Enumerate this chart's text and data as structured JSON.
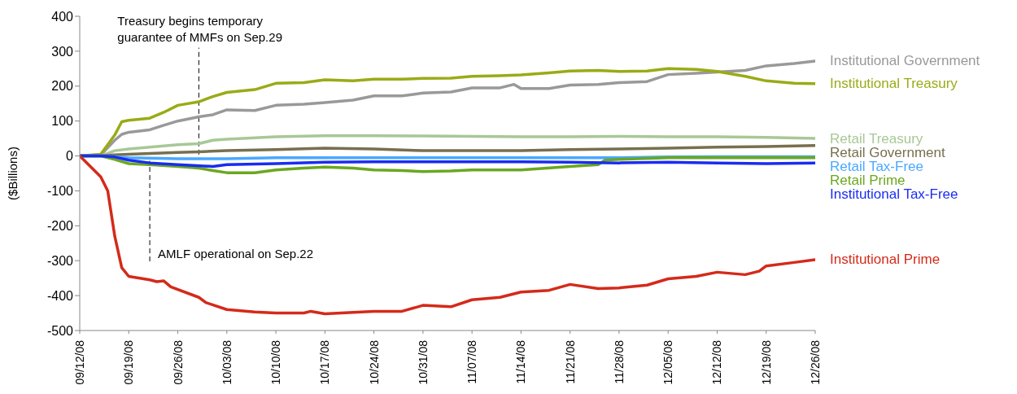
{
  "chart_data": {
    "type": "line",
    "ylabel": "($Billions)",
    "xlim": [
      "--09-12",
      "--12-26"
    ],
    "ylim": [
      -500,
      400
    ],
    "yticks": [
      -500,
      -400,
      -300,
      -200,
      -100,
      0,
      100,
      200,
      300,
      400
    ],
    "xticks": [
      {
        "value": "--09-12",
        "label": "09/12/08"
      },
      {
        "value": "--09-19",
        "label": "09/19/08"
      },
      {
        "value": "--09-26",
        "label": "09/26/08"
      },
      {
        "value": "--10-03",
        "label": "10/03/08"
      },
      {
        "value": "--10-10",
        "label": "10/10/08"
      },
      {
        "value": "--10-17",
        "label": "10/17/08"
      },
      {
        "value": "--10-24",
        "label": "10/24/08"
      },
      {
        "value": "--10-31",
        "label": "10/31/08"
      },
      {
        "value": "--11-07",
        "label": "11/07/08"
      },
      {
        "value": "--11-14",
        "label": "11/14/08"
      },
      {
        "value": "--11-21",
        "label": "11/21/08"
      },
      {
        "value": "--11-28",
        "label": "11/28/08"
      },
      {
        "value": "--12-05",
        "label": "12/05/08"
      },
      {
        "value": "--12-12",
        "label": "12/12/08"
      },
      {
        "value": "--12-19",
        "label": "12/19/08"
      },
      {
        "value": "--12-26",
        "label": "12/26/08"
      }
    ],
    "marker": "none",
    "line_style": "solid",
    "series": [
      {
        "name": "Institutional Government",
        "color": "#999999",
        "x": [
          "--09-12",
          "--09-15",
          "--09-17",
          "--09-18",
          "--09-19",
          "--09-22",
          "--09-24",
          "--09-26",
          "--09-29",
          "--10-01",
          "--10-03",
          "--10-07",
          "--10-10",
          "--10-14",
          "--10-17",
          "--10-21",
          "--10-24",
          "--10-28",
          "--10-31",
          "--11-04",
          "--11-07",
          "--11-11",
          "--11-13",
          "--11-14",
          "--11-18",
          "--11-21",
          "--11-25",
          "--11-28",
          "--12-02",
          "--12-05",
          "--12-09",
          "--12-12",
          "--12-16",
          "--12-19",
          "--12-23",
          "--12-26"
        ],
        "values": [
          0,
          3,
          45,
          62,
          68,
          75,
          88,
          100,
          112,
          118,
          132,
          130,
          145,
          148,
          153,
          160,
          172,
          172,
          180,
          183,
          195,
          195,
          205,
          193,
          193,
          203,
          205,
          210,
          213,
          233,
          237,
          240,
          245,
          258,
          265,
          272
        ]
      },
      {
        "name": "Institutional Treasury",
        "color": "#9aab16",
        "x": [
          "--09-12",
          "--09-15",
          "--09-17",
          "--09-18",
          "--09-19",
          "--09-22",
          "--09-24",
          "--09-26",
          "--09-29",
          "--10-01",
          "--10-03",
          "--10-07",
          "--10-10",
          "--10-14",
          "--10-17",
          "--10-21",
          "--10-24",
          "--10-28",
          "--10-31",
          "--11-04",
          "--11-07",
          "--11-11",
          "--11-14",
          "--11-18",
          "--11-21",
          "--11-25",
          "--11-28",
          "--12-02",
          "--12-05",
          "--12-09",
          "--12-12",
          "--12-16",
          "--12-19",
          "--12-23",
          "--12-26"
        ],
        "values": [
          0,
          5,
          60,
          98,
          102,
          108,
          125,
          145,
          155,
          170,
          182,
          190,
          208,
          210,
          218,
          215,
          220,
          220,
          222,
          223,
          228,
          230,
          232,
          238,
          243,
          245,
          242,
          243,
          250,
          248,
          242,
          228,
          215,
          208,
          207
        ]
      },
      {
        "name": "Retail Treasury",
        "color": "#a8c896",
        "x": [
          "--09-12",
          "--09-15",
          "--09-17",
          "--09-19",
          "--09-22",
          "--09-26",
          "--09-29",
          "--10-01",
          "--10-03",
          "--10-10",
          "--10-17",
          "--10-24",
          "--10-31",
          "--11-07",
          "--11-14",
          "--11-21",
          "--11-28",
          "--12-05",
          "--12-12",
          "--12-19",
          "--12-26"
        ],
        "values": [
          0,
          0,
          15,
          20,
          25,
          32,
          35,
          45,
          48,
          55,
          58,
          58,
          57,
          56,
          55,
          55,
          56,
          55,
          55,
          53,
          50
        ]
      },
      {
        "name": "Retail Government",
        "color": "#77704e",
        "x": [
          "--09-12",
          "--09-15",
          "--09-17",
          "--09-19",
          "--09-26",
          "--09-29",
          "--10-03",
          "--10-10",
          "--10-17",
          "--10-24",
          "--10-31",
          "--11-07",
          "--11-14",
          "--11-21",
          "--11-28",
          "--12-05",
          "--12-12",
          "--12-19",
          "--12-26"
        ],
        "values": [
          0,
          0,
          3,
          5,
          10,
          12,
          15,
          18,
          22,
          20,
          15,
          15,
          15,
          18,
          20,
          22,
          25,
          27,
          30
        ]
      },
      {
        "name": "Retail Tax-Free",
        "color": "#4aa8ff",
        "x": [
          "--09-12",
          "--09-15",
          "--09-17",
          "--09-19",
          "--09-26",
          "--10-03",
          "--10-10",
          "--10-17",
          "--10-24",
          "--10-31",
          "--11-07",
          "--11-14",
          "--11-21",
          "--11-28",
          "--12-05",
          "--12-12",
          "--12-19",
          "--12-26"
        ],
        "values": [
          0,
          0,
          -2,
          -5,
          -8,
          -8,
          -5,
          -5,
          -5,
          -5,
          -5,
          -5,
          -5,
          -5,
          -3,
          -2,
          -2,
          -2
        ]
      },
      {
        "name": "Retail Prime",
        "color": "#6aa820",
        "x": [
          "--09-12",
          "--09-15",
          "--09-17",
          "--09-19",
          "--09-22",
          "--09-26",
          "--09-29",
          "--10-01",
          "--10-03",
          "--10-07",
          "--10-10",
          "--10-14",
          "--10-17",
          "--10-21",
          "--10-24",
          "--10-28",
          "--10-31",
          "--11-04",
          "--11-07",
          "--11-14",
          "--11-21",
          "--11-25",
          "--11-26",
          "--11-28",
          "--12-05",
          "--12-12",
          "--12-19",
          "--12-26"
        ],
        "values": [
          0,
          0,
          -10,
          -22,
          -25,
          -30,
          -35,
          -42,
          -48,
          -48,
          -40,
          -35,
          -32,
          -35,
          -40,
          -42,
          -45,
          -43,
          -40,
          -40,
          -30,
          -25,
          -12,
          -10,
          -5,
          -5,
          -5,
          -5
        ]
      },
      {
        "name": "Institutional Tax-Free",
        "color": "#1a2cf0",
        "x": [
          "--09-12",
          "--09-15",
          "--09-17",
          "--09-19",
          "--09-22",
          "--09-26",
          "--10-01",
          "--10-03",
          "--10-10",
          "--10-17",
          "--10-24",
          "--10-31",
          "--11-07",
          "--11-14",
          "--11-21",
          "--11-28",
          "--12-05",
          "--12-12",
          "--12-19",
          "--12-26"
        ],
        "values": [
          0,
          0,
          -3,
          -12,
          -20,
          -25,
          -30,
          -25,
          -22,
          -18,
          -17,
          -17,
          -17,
          -17,
          -18,
          -20,
          -18,
          -20,
          -22,
          -20
        ]
      },
      {
        "name": "Institutional Prime",
        "color": "#d42a1a",
        "x": [
          "--09-12",
          "--09-15",
          "--09-16",
          "--09-17",
          "--09-18",
          "--09-19",
          "--09-22",
          "--09-23",
          "--09-24",
          "--09-25",
          "--09-29",
          "--09-30",
          "--10-03",
          "--10-07",
          "--10-10",
          "--10-14",
          "--10-15",
          "--10-17",
          "--10-21",
          "--10-24",
          "--10-28",
          "--10-31",
          "--11-04",
          "--11-07",
          "--11-11",
          "--11-14",
          "--11-18",
          "--11-21",
          "--11-25",
          "--11-28",
          "--12-02",
          "--12-05",
          "--12-09",
          "--12-12",
          "--12-16",
          "--12-18",
          "--12-19",
          "--12-23",
          "--12-26"
        ],
        "values": [
          0,
          -60,
          -100,
          -230,
          -320,
          -345,
          -355,
          -360,
          -358,
          -375,
          -405,
          -420,
          -440,
          -447,
          -450,
          -450,
          -445,
          -452,
          -448,
          -445,
          -445,
          -428,
          -432,
          -412,
          -405,
          -390,
          -385,
          -368,
          -380,
          -378,
          -370,
          -352,
          -345,
          -333,
          -340,
          -330,
          -315,
          -305,
          -297
        ]
      }
    ],
    "ref_lines": [
      {
        "axis": "x",
        "value": "--09-22",
        "label": "AMLF operational on Sep.22",
        "color": "#000000",
        "line_style": "dashed"
      },
      {
        "axis": "x",
        "value": "--09-29",
        "label": "Treasury begins temporary guarantee of MMFs on Sep.29",
        "color": "#000000",
        "line_style": "dashed"
      }
    ]
  }
}
